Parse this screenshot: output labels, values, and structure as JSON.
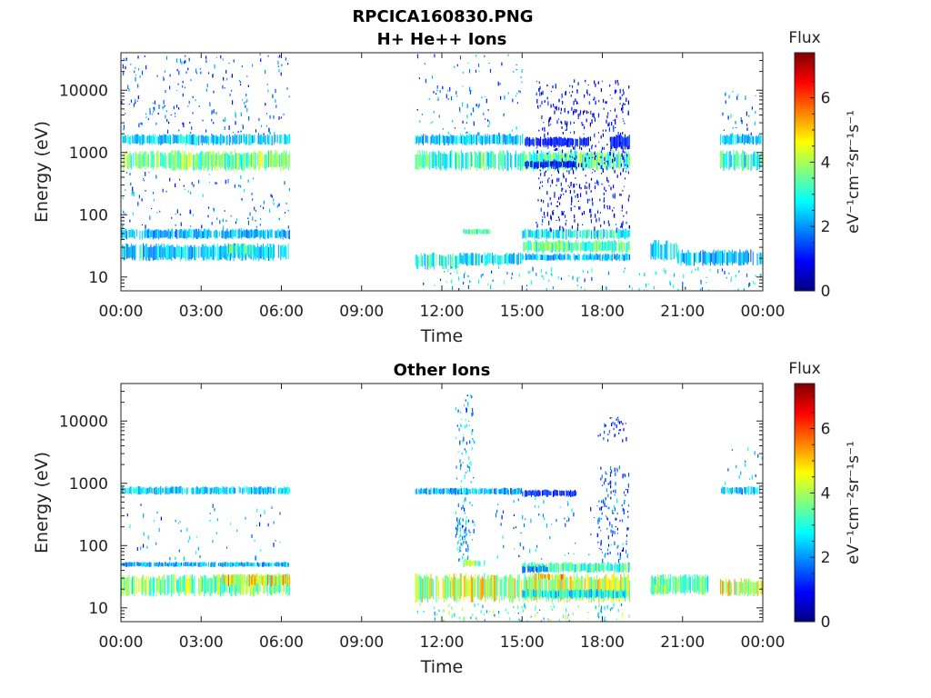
{
  "figure_title": "RPCICA160830.PNG",
  "colors": {
    "colormap": [
      "#00007f",
      "#0000ff",
      "#007fff",
      "#00ffff",
      "#7fff7f",
      "#ffff00",
      "#ff7f00",
      "#ff0000",
      "#7f0000"
    ]
  },
  "chart_data": [
    {
      "type": "heatmap",
      "title": "H+ He++ Ions",
      "xlabel": "Time",
      "ylabel": "Energy (eV)",
      "x_tick_labels": [
        "00:00",
        "03:00",
        "06:00",
        "09:00",
        "12:00",
        "15:00",
        "18:00",
        "21:00",
        "00:00"
      ],
      "x_ticks_hours": [
        0,
        3,
        6,
        9,
        12,
        15,
        18,
        21,
        24
      ],
      "xlim_hours": [
        0,
        24
      ],
      "y_scale": "log",
      "ylim": [
        6,
        40000
      ],
      "y_tick_labels": [
        "10",
        "100",
        "1000",
        "10000"
      ],
      "y_ticks": [
        10,
        100,
        1000,
        10000
      ],
      "colorbar": {
        "label": "Flux",
        "unit": "eV⁻¹cm⁻²sr⁻¹s⁻¹",
        "range": [
          0,
          7.4
        ],
        "tick_labels": [
          "0",
          "2",
          "4",
          "6"
        ],
        "ticks": [
          0,
          2,
          4,
          6
        ]
      },
      "data_gaps_hours": [
        [
          6.3,
          11.0
        ],
        [
          22.3,
          22.4
        ]
      ],
      "bands": [
        {
          "t": [
            0.0,
            6.3
          ],
          "e": [
            500,
            1100
          ],
          "flux": 3.6
        },
        {
          "t": [
            0.0,
            6.3
          ],
          "e": [
            1300,
            2000
          ],
          "flux": 2.5
        },
        {
          "t": [
            0.0,
            6.3
          ],
          "e": [
            40,
            60
          ],
          "flux": 2.2
        },
        {
          "t": [
            0.0,
            6.3
          ],
          "e": [
            18,
            35
          ],
          "flux": 2.4
        },
        {
          "t": [
            3.8,
            5.0
          ],
          "e": [
            22,
            35
          ],
          "flux": 3.1
        },
        {
          "t": [
            11.0,
            15.0
          ],
          "e": [
            500,
            1100
          ],
          "flux": 3.2
        },
        {
          "t": [
            11.0,
            15.0
          ],
          "e": [
            1300,
            2000
          ],
          "flux": 2.4
        },
        {
          "t": [
            11.0,
            12.6
          ],
          "e": [
            13,
            25
          ],
          "flux": 3.0
        },
        {
          "t": [
            12.6,
            15.0
          ],
          "e": [
            15,
            25
          ],
          "flux": 2.6
        },
        {
          "t": [
            12.8,
            13.8
          ],
          "e": [
            48,
            60
          ],
          "flux": 3.2
        },
        {
          "t": [
            15.0,
            19.0
          ],
          "e": [
            500,
            1100
          ],
          "flux": 3.4
        },
        {
          "t": [
            15.1,
            17.0
          ],
          "e": [
            550,
            750
          ],
          "flux": 1.0
        },
        {
          "t": [
            15.1,
            17.5
          ],
          "e": [
            1200,
            1800
          ],
          "flux": 1.1
        },
        {
          "t": [
            18.3,
            19.0
          ],
          "e": [
            1100,
            2000
          ],
          "flux": 1.2
        },
        {
          "t": [
            15.0,
            19.0
          ],
          "e": [
            24,
            40
          ],
          "flux": 3.4
        },
        {
          "t": [
            15.6,
            16.4
          ],
          "e": [
            26,
            36
          ],
          "flux": 3.9
        },
        {
          "t": [
            15.0,
            19.0
          ],
          "e": [
            40,
            60
          ],
          "flux": 2.8
        },
        {
          "t": [
            15.0,
            19.0
          ],
          "e": [
            18,
            24
          ],
          "flux": 2.3
        },
        {
          "t": [
            19.8,
            20.8
          ],
          "e": [
            18,
            40
          ],
          "flux": 2.4
        },
        {
          "t": [
            20.8,
            24.0
          ],
          "e": [
            15,
            28
          ],
          "flux": 2.2
        },
        {
          "t": [
            22.4,
            24.0
          ],
          "e": [
            500,
            1100
          ],
          "flux": 3.0
        },
        {
          "t": [
            22.4,
            24.0
          ],
          "e": [
            1300,
            2000
          ],
          "flux": 2.4
        }
      ],
      "scatter": [
        {
          "t": [
            0.0,
            6.3
          ],
          "e": [
            2000,
            40000
          ],
          "flux": 1.6,
          "density": 0.05
        },
        {
          "t": [
            0.0,
            6.3
          ],
          "e": [
            60,
            500
          ],
          "flux": 1.8,
          "density": 0.04
        },
        {
          "t": [
            11.0,
            15.0
          ],
          "e": [
            2000,
            40000
          ],
          "flux": 1.8,
          "density": 0.04
        },
        {
          "t": [
            15.5,
            19.0
          ],
          "e": [
            60,
            15000
          ],
          "flux": 1.0,
          "density": 0.12
        },
        {
          "t": [
            11.0,
            24.0
          ],
          "e": [
            6,
            15
          ],
          "flux": 2.4,
          "density": 0.05
        },
        {
          "t": [
            22.4,
            24.0
          ],
          "e": [
            2000,
            10000
          ],
          "flux": 2.0,
          "density": 0.05
        }
      ]
    },
    {
      "type": "heatmap",
      "title": "Other Ions",
      "xlabel": "Time",
      "ylabel": "Energy (eV)",
      "x_tick_labels": [
        "00:00",
        "03:00",
        "06:00",
        "09:00",
        "12:00",
        "15:00",
        "18:00",
        "21:00",
        "00:00"
      ],
      "x_ticks_hours": [
        0,
        3,
        6,
        9,
        12,
        15,
        18,
        21,
        24
      ],
      "xlim_hours": [
        0,
        24
      ],
      "y_scale": "log",
      "ylim": [
        6,
        40000
      ],
      "y_tick_labels": [
        "10",
        "100",
        "1000",
        "10000"
      ],
      "y_ticks": [
        10,
        100,
        1000,
        10000
      ],
      "colorbar": {
        "label": "Flux",
        "unit": "eV⁻¹cm⁻²sr⁻¹s⁻¹",
        "range": [
          0,
          7.4
        ],
        "tick_labels": [
          "0",
          "2",
          "4",
          "6"
        ],
        "ticks": [
          0,
          2,
          4,
          6
        ]
      },
      "data_gaps_hours": [
        [
          6.3,
          11.0
        ],
        [
          19.0,
          19.8
        ],
        [
          22.0,
          22.4
        ]
      ],
      "bands": [
        {
          "t": [
            0.0,
            6.3
          ],
          "e": [
            650,
            900
          ],
          "flux": 2.4
        },
        {
          "t": [
            0.0,
            6.3
          ],
          "e": [
            15,
            35
          ],
          "flux": 3.6
        },
        {
          "t": [
            0.0,
            6.3
          ],
          "e": [
            45,
            55
          ],
          "flux": 2.2
        },
        {
          "t": [
            3.8,
            6.3
          ],
          "e": [
            22,
            36
          ],
          "flux": 4.6
        },
        {
          "t": [
            11.0,
            15.0
          ],
          "e": [
            650,
            850
          ],
          "flux": 2.2
        },
        {
          "t": [
            11.0,
            19.0
          ],
          "e": [
            12,
            36
          ],
          "flux": 4.2
        },
        {
          "t": [
            12.8,
            13.6
          ],
          "e": [
            45,
            60
          ],
          "flux": 3.8
        },
        {
          "t": [
            15.0,
            17.0
          ],
          "e": [
            600,
            800
          ],
          "flux": 1.2
        },
        {
          "t": [
            15.0,
            19.0
          ],
          "e": [
            36,
            55
          ],
          "flux": 3.2
        },
        {
          "t": [
            15.0,
            16.0
          ],
          "e": [
            36,
            48
          ],
          "flux": 1.8
        },
        {
          "t": [
            15.6,
            16.6
          ],
          "e": [
            28,
            36
          ],
          "flux": 4.8
        },
        {
          "t": [
            15.0,
            19.0
          ],
          "e": [
            14,
            20
          ],
          "flux": 2.7
        },
        {
          "t": [
            19.8,
            22.0
          ],
          "e": [
            16,
            35
          ],
          "flux": 3.3
        },
        {
          "t": [
            19.8,
            20.5
          ],
          "e": [
            16,
            24
          ],
          "flux": 3.8
        },
        {
          "t": [
            22.4,
            24.0
          ],
          "e": [
            15,
            30
          ],
          "flux": 4.4
        },
        {
          "t": [
            22.4,
            24.0
          ],
          "e": [
            650,
            900
          ],
          "flux": 2.4
        }
      ],
      "scatter": [
        {
          "t": [
            12.5,
            13.2
          ],
          "e": [
            100,
            30000
          ],
          "flux": 2.2,
          "density": 0.12
        },
        {
          "t": [
            12.5,
            13.0
          ],
          "e": [
            60,
            300
          ],
          "flux": 2.6,
          "density": 0.3
        },
        {
          "t": [
            17.8,
            19.0
          ],
          "e": [
            60,
            2000
          ],
          "flux": 1.4,
          "density": 0.12
        },
        {
          "t": [
            17.8,
            18.9
          ],
          "e": [
            5000,
            12000
          ],
          "flux": 1.2,
          "density": 0.15
        },
        {
          "t": [
            0.0,
            6.3
          ],
          "e": [
            60,
            500
          ],
          "flux": 2.0,
          "density": 0.02
        },
        {
          "t": [
            14.0,
            19.0
          ],
          "e": [
            60,
            600
          ],
          "flux": 2.0,
          "density": 0.03
        },
        {
          "t": [
            11.0,
            19.0
          ],
          "e": [
            6,
            12
          ],
          "flux": 3.0,
          "density": 0.1
        },
        {
          "t": [
            22.4,
            24.0
          ],
          "e": [
            1000,
            4000
          ],
          "flux": 2.2,
          "density": 0.03
        }
      ]
    }
  ]
}
